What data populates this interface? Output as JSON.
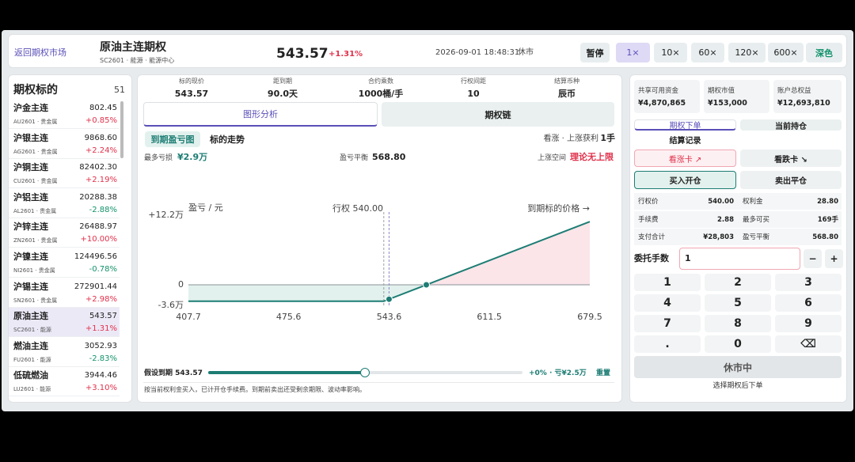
{
  "header": {
    "back": "返回期权市场",
    "title": "原油主连期权",
    "subtitle": "SC2601 · 能源 · 能源中心",
    "price": "543.57",
    "change": "+1.31%",
    "datetime": "2026-09-01 18:48:31",
    "status": "休市",
    "pause": "暂停",
    "speeds": [
      "1×",
      "10×",
      "60×",
      "120×",
      "600×"
    ],
    "theme": "深色"
  },
  "underlyings": {
    "title": "期权标的",
    "count": "51",
    "items": [
      {
        "name": "沪金主连",
        "code": "AU2601 · 贵金属",
        "price": "802.45",
        "change": "+0.85%"
      },
      {
        "name": "沪银主连",
        "code": "AG2601 · 贵金属",
        "price": "9868.60",
        "change": "+2.24%"
      },
      {
        "name": "沪铜主连",
        "code": "CU2601 · 贵金属",
        "price": "82402.30",
        "change": "+2.19%"
      },
      {
        "name": "沪铝主连",
        "code": "AL2601 · 贵金属",
        "price": "20288.38",
        "change": "-2.88%"
      },
      {
        "name": "沪锌主连",
        "code": "ZN2601 · 贵金属",
        "price": "26488.97",
        "change": "+10.00%"
      },
      {
        "name": "沪镍主连",
        "code": "NI2601 · 贵金属",
        "price": "124496.56",
        "change": "-0.78%"
      },
      {
        "name": "沪锡主连",
        "code": "SN2601 · 贵金属",
        "price": "272901.44",
        "change": "+2.98%"
      },
      {
        "name": "原油主连",
        "code": "SC2601 · 能源",
        "price": "543.57",
        "change": "+1.31%"
      },
      {
        "name": "燃油主连",
        "code": "FU2601 · 能源",
        "price": "3052.93",
        "change": "-2.83%"
      },
      {
        "name": "低硫燃油",
        "code": "LU2601 · 能源",
        "price": "3944.46",
        "change": "+3.10%"
      }
    ]
  },
  "stats": [
    {
      "label": "标的现价",
      "value": "543.57"
    },
    {
      "label": "距到期",
      "value": "90.0天"
    },
    {
      "label": "合约乘数",
      "value": "1000桶/手"
    },
    {
      "label": "行权间距",
      "value": "10"
    },
    {
      "label": "结算币种",
      "value": "辰币"
    }
  ],
  "tabs": [
    "图形分析",
    "期权链"
  ],
  "subtabs": [
    "到期盈亏图",
    "标的走势"
  ],
  "direction": "看涨 · 上涨获利",
  "lots": "1手",
  "summary": [
    {
      "label": "最多亏损",
      "value": "¥2.9万"
    },
    {
      "label": "盈亏平衡",
      "value": "568.80"
    },
    {
      "label": "上涨空间",
      "value": "理论无上限"
    }
  ],
  "payoff_chart": {
    "type": "line",
    "y_label": "盈亏 / 元",
    "strike_label": "行权 540.00",
    "x_label": "到期标的价格 →",
    "x": [
      407.7,
      540,
      568.8,
      679.5
    ],
    "values": [
      -2.88,
      -2.88,
      0,
      11.07
    ],
    "xlim": [
      407.7,
      679.5
    ],
    "ylim": [
      -3.6,
      12.2
    ],
    "xticks": [
      407.7,
      475.6,
      543.6,
      611.5,
      679.5
    ],
    "yticks": [
      {
        "value": 12.2,
        "label": "+12.2万"
      },
      0,
      {
        "value": -3.6,
        "label": "-3.6万"
      }
    ],
    "strike": 540,
    "spot": 543.57,
    "markers": [
      {
        "x": 543.57,
        "value": -2.52
      },
      {
        "x": 568.8,
        "value": 0
      }
    ],
    "color": "#1d7d74",
    "loss_color": "#e2f1ed",
    "profit_color": "#fbe5e9"
  },
  "scenario": {
    "label": "假设到期 543.57",
    "result": "+0% · 亏¥2.5万",
    "reset": "重置"
  },
  "note": "按当前权利金买入，已计开仓手续费。到期前卖出还受剩余期限、波动率影响。",
  "account": [
    {
      "label": "共享可用资金",
      "value": "¥4,870,865"
    },
    {
      "label": "期权市值",
      "value": "¥153,000"
    },
    {
      "label": "账户总权益",
      "value": "¥12,693,810"
    }
  ],
  "order_tabs": [
    "期权下单",
    "当前持仓",
    "结算记录"
  ],
  "cards": [
    "看涨卡 ↗",
    "看跌卡 ↘"
  ],
  "actions": [
    "买入开仓",
    "卖出平仓"
  ],
  "info": [
    [
      "行权价",
      "540.00",
      "权利金",
      "28.80"
    ],
    [
      "手续费",
      "2.88",
      "最多可买",
      "169手"
    ],
    [
      "支付合计",
      "¥28,803",
      "盈亏平衡",
      "568.80"
    ]
  ],
  "quantity": {
    "label": "委托手数",
    "value": "1",
    "minus": "−",
    "plus": "+"
  },
  "keypad": [
    "1",
    "2",
    "3",
    "4",
    "5",
    "6",
    "7",
    "8",
    "9",
    ".",
    "0",
    "⌫"
  ],
  "closed": "休市中",
  "hint": "选择期权后下单"
}
